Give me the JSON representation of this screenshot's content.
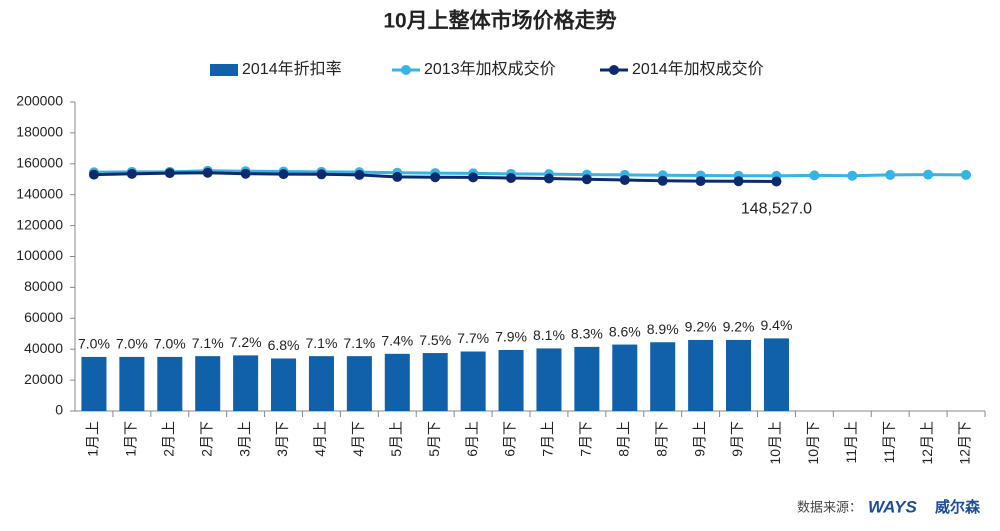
{
  "chart_data": {
    "type": "combo",
    "title": "10月上整体市场价格走势",
    "categories": [
      "1月上",
      "1月下",
      "2月上",
      "2月下",
      "3月上",
      "3月下",
      "4月上",
      "4月下",
      "5月上",
      "5月下",
      "6月上",
      "6月下",
      "7月上",
      "7月下",
      "8月上",
      "8月下",
      "9月上",
      "9月下",
      "10月上",
      "10月下",
      "11月上",
      "11月下",
      "12月上",
      "12月下"
    ],
    "series": [
      {
        "name": "2014年折扣率",
        "type": "bar",
        "axis": "y2",
        "color": "#1061a9",
        "values": [
          7.0,
          7.0,
          7.0,
          7.1,
          7.2,
          6.8,
          7.1,
          7.1,
          7.4,
          7.5,
          7.7,
          7.9,
          8.1,
          8.3,
          8.6,
          8.9,
          9.2,
          9.2,
          9.4,
          null,
          null,
          null,
          null,
          null
        ],
        "value_labels": [
          "7.0%",
          "7.0%",
          "7.0%",
          "7.1%",
          "7.2%",
          "6.8%",
          "7.1%",
          "7.1%",
          "7.4%",
          "7.5%",
          "7.7%",
          "7.9%",
          "8.1%",
          "8.3%",
          "8.6%",
          "8.9%",
          "9.2%",
          "9.2%",
          "9.4%",
          null,
          null,
          null,
          null,
          null
        ]
      },
      {
        "name": "2013年加权成交价",
        "type": "line",
        "color": "#35b4e6",
        "values": [
          154500,
          154800,
          154800,
          155500,
          155200,
          155000,
          154800,
          154600,
          154200,
          154000,
          153800,
          153500,
          153300,
          153000,
          152800,
          152600,
          152400,
          152300,
          152200,
          152500,
          152300,
          152800,
          153000,
          152800
        ]
      },
      {
        "name": "2014年加权成交价",
        "type": "line",
        "color": "#0d2a6e",
        "values": [
          153000,
          153500,
          154000,
          154200,
          153600,
          153300,
          153200,
          152800,
          151500,
          151300,
          151200,
          150800,
          150500,
          150000,
          149500,
          149000,
          148800,
          148700,
          148527,
          null,
          null,
          null,
          null,
          null
        ],
        "value_labels": [
          null,
          null,
          null,
          null,
          null,
          null,
          null,
          null,
          null,
          null,
          null,
          null,
          null,
          null,
          null,
          null,
          null,
          null,
          "148,527.0",
          null,
          null,
          null,
          null,
          null
        ]
      }
    ],
    "ylim": [
      0,
      200000
    ],
    "yticks": [
      0,
      20000,
      40000,
      60000,
      80000,
      100000,
      120000,
      140000,
      160000,
      180000,
      200000
    ],
    "y2lim": [
      0,
      40
    ],
    "legend": "top",
    "source": "数据来源：",
    "logo": [
      "WAYS",
      "威尔森"
    ]
  }
}
